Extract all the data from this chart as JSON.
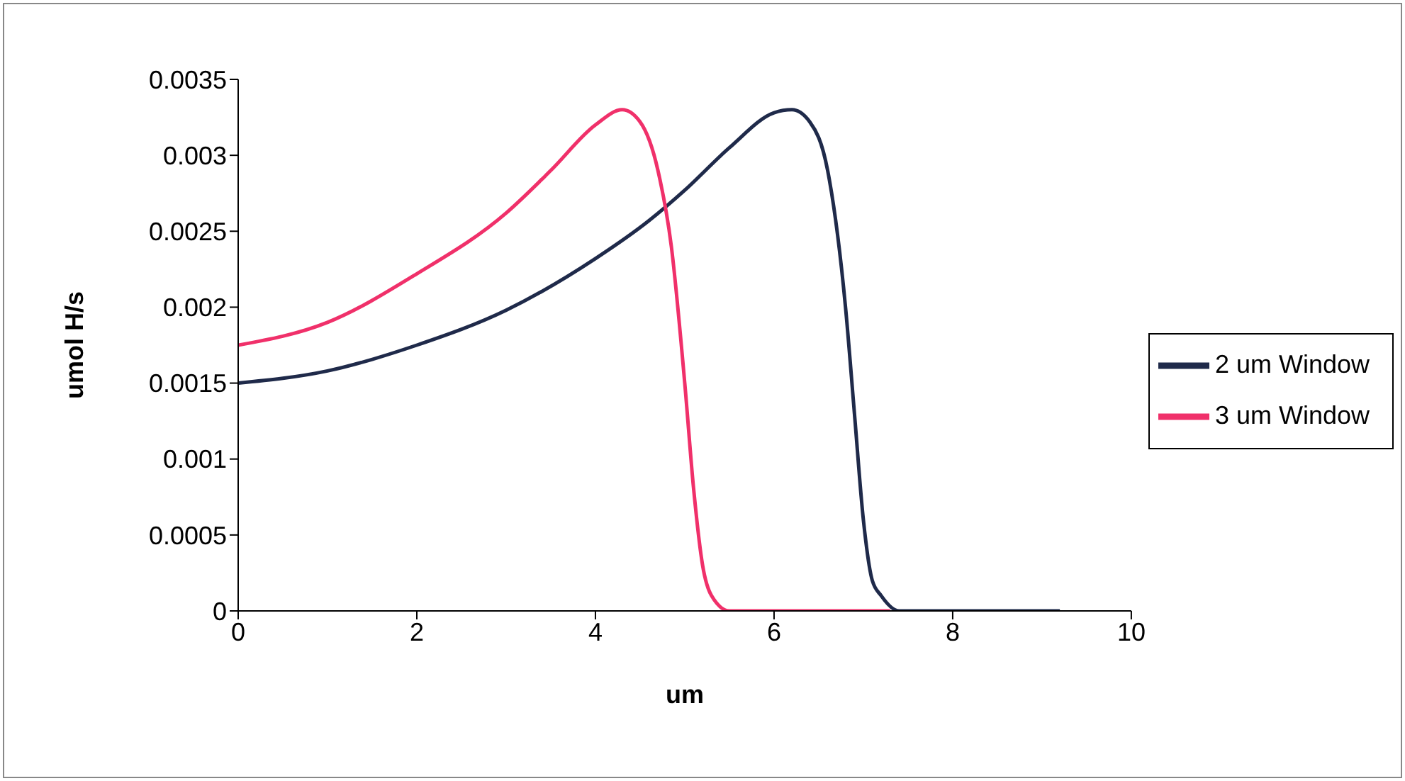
{
  "chart_data": {
    "type": "line",
    "xlabel": "um",
    "ylabel": "umol H/s",
    "xlim": [
      0,
      10
    ],
    "xticks": [
      0,
      2,
      4,
      6,
      8,
      10
    ],
    "ylim": [
      0,
      0.0035
    ],
    "yticks": [
      0,
      0.0005,
      0.001,
      0.0015,
      0.002,
      0.0025,
      0.003,
      0.0035
    ],
    "grid": false,
    "legend": "right",
    "marker": "none",
    "line_style": "solid",
    "series": [
      {
        "name": "2 um Window",
        "color": "#1f2a4a",
        "x": [
          0,
          1,
          2,
          3,
          4,
          4.6,
          5,
          5.5,
          6,
          6.2,
          6.4,
          6.6,
          6.8,
          6.9,
          7,
          7.1,
          7.2,
          7.4,
          9.2
        ],
        "values": [
          0.0015,
          0.00158,
          0.00175,
          0.00198,
          0.00232,
          0.00257,
          0.00277,
          0.00305,
          0.00328,
          0.0033,
          0.00322,
          0.0029,
          0.002,
          0.0013,
          0.0006,
          0.0002,
          0.0001,
          0,
          0
        ]
      },
      {
        "name": "3 um Window",
        "color": "#f0306a",
        "x": [
          0,
          1,
          2,
          3,
          3.5,
          4,
          4.3,
          4.5,
          4.7,
          4.85,
          5,
          5.1,
          5.2,
          5.3,
          5.5,
          7.3
        ],
        "values": [
          0.00175,
          0.0019,
          0.00222,
          0.00262,
          0.0029,
          0.0032,
          0.0033,
          0.00322,
          0.0029,
          0.0024,
          0.0015,
          0.0008,
          0.0003,
          0.0001,
          0,
          0
        ]
      }
    ]
  }
}
